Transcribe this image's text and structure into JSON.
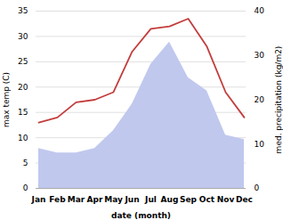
{
  "chart_data": {
    "type": "line",
    "xlabel": "date (month)",
    "ylabel": "max temp (C)",
    "y2label": "med. precipitation (kg/m2)",
    "categories": [
      "Jan",
      "Feb",
      "Mar",
      "Apr",
      "May",
      "Jun",
      "Jul",
      "Aug",
      "Sep",
      "Oct",
      "Nov",
      "Dec"
    ],
    "series": [
      {
        "type": "area",
        "axis": "y2",
        "color": "#c0c8ee",
        "values": [
          9,
          8,
          8,
          9,
          13,
          19,
          28,
          33,
          25,
          22,
          12,
          11
        ]
      },
      {
        "type": "line",
        "color": "#c43c3c",
        "values": [
          13.0,
          14.0,
          17.0,
          17.5,
          19.0,
          27.0,
          31.5,
          32.0,
          33.5,
          28.0,
          19.0,
          14.0
        ]
      }
    ],
    "ylim": [
      0,
      35
    ],
    "yticks": [
      0,
      5,
      10,
      15,
      20,
      25,
      30,
      35
    ],
    "y2lim": [
      0,
      40
    ],
    "y2ticks": [
      0,
      10,
      20,
      30,
      40
    ],
    "grid": true
  }
}
